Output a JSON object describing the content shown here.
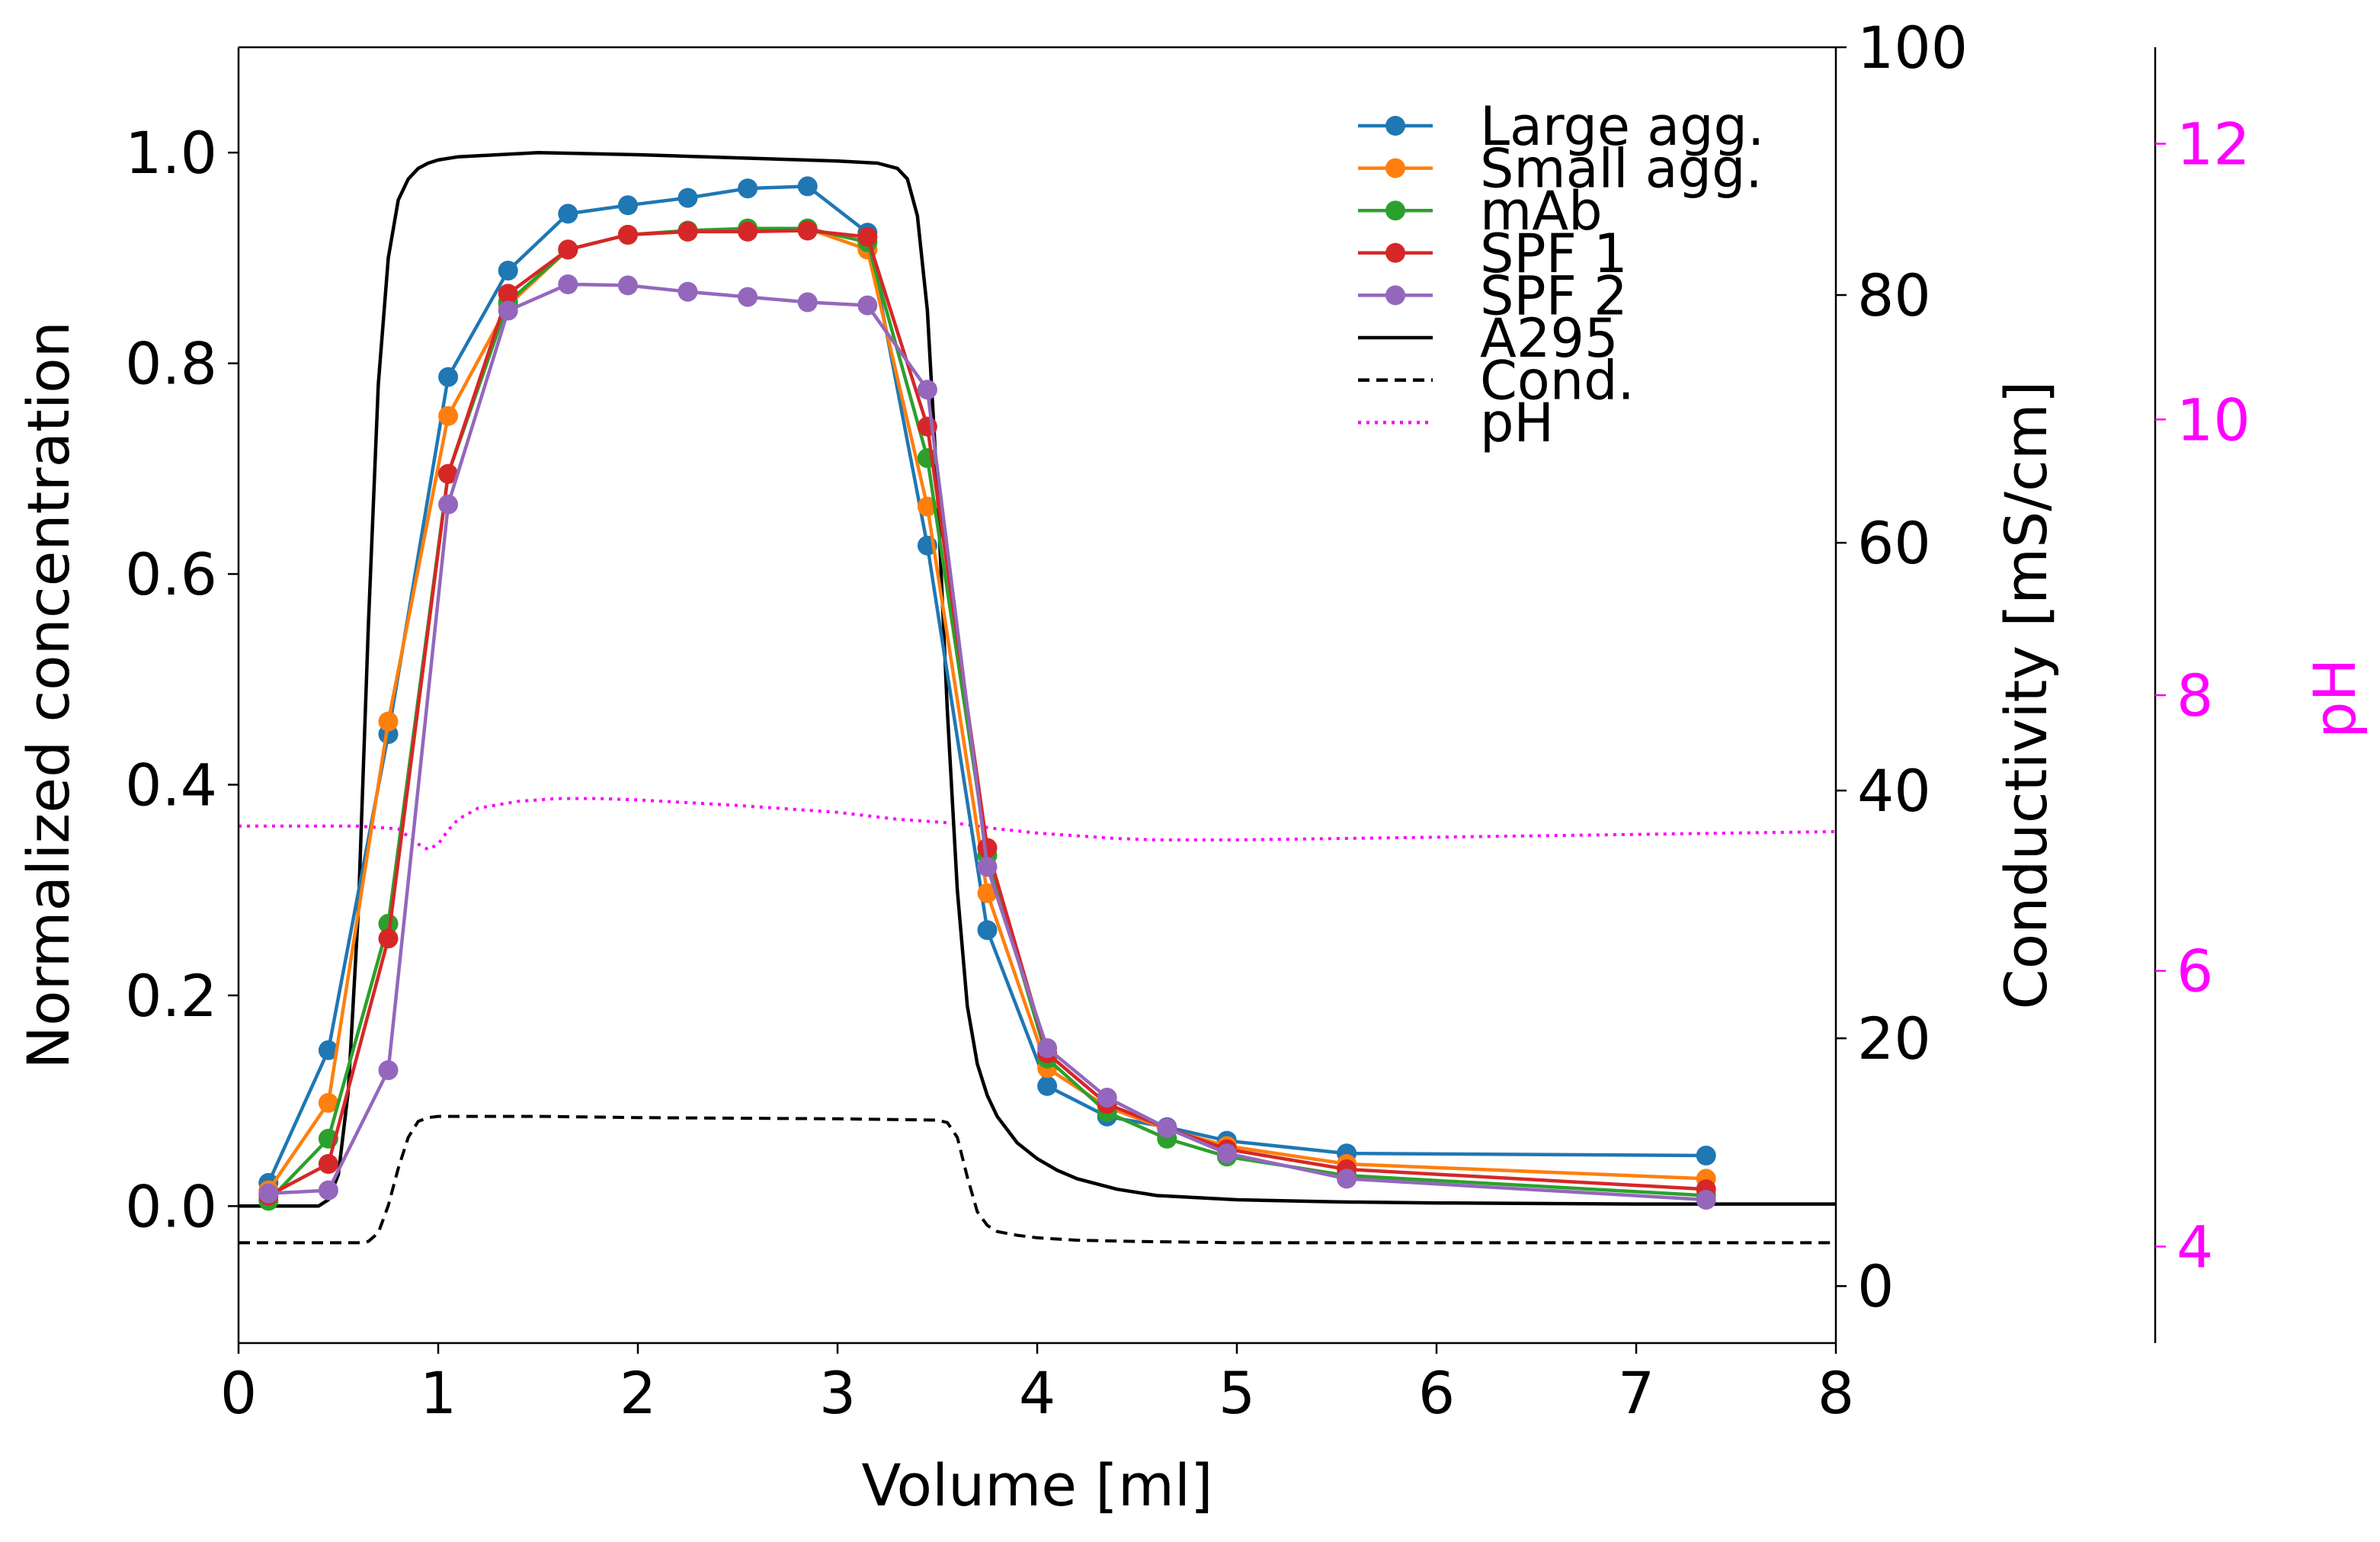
{
  "chart_data": {
    "type": "line",
    "title": "",
    "xlabel": "Volume [ml]",
    "ylabel": "Normalized concentration",
    "y2label": "Conductivity [mS/cm]",
    "y3label": "pH",
    "xlim": [
      0,
      8
    ],
    "ylim": [
      -0.13,
      1.1
    ],
    "y2lim": [
      -4.6,
      100
    ],
    "y3lim": [
      3.3,
      12.7
    ],
    "x_ticks": [
      "0",
      "1",
      "2",
      "3",
      "4",
      "5",
      "6",
      "7",
      "8"
    ],
    "y_ticks": [
      "0.0",
      "0.2",
      "0.4",
      "0.6",
      "0.8",
      "1.0"
    ],
    "y2_ticks": [
      "0",
      "20",
      "40",
      "60",
      "80",
      "100"
    ],
    "y3_ticks": [
      "4",
      "6",
      "8",
      "10",
      "12"
    ],
    "grid": false,
    "legend_position": "top-right",
    "colors": {
      "Large agg.": "#1f77b4",
      "Small agg.": "#ff7f0e",
      "mAb": "#2ca02c",
      "SPF 1": "#d62728",
      "SPF 2": "#9467bd",
      "A295": "#000000",
      "Cond.": "#000000",
      "pH": "#ff00ff",
      "pH_axis": "#ff00ff"
    },
    "x_fractions": [
      0.15,
      0.45,
      0.75,
      1.05,
      1.35,
      1.65,
      1.95,
      2.25,
      2.55,
      2.85,
      3.15,
      3.45,
      3.75,
      4.05,
      4.35,
      4.65,
      4.95,
      5.55,
      7.35
    ],
    "series": [
      {
        "name": "Large agg.",
        "values": [
          0.022,
          0.148,
          0.448,
          0.787,
          0.888,
          0.942,
          0.95,
          0.957,
          0.966,
          0.968,
          0.924,
          0.627,
          0.262,
          0.114,
          0.085,
          0.075,
          0.062,
          0.05,
          0.048
        ]
      },
      {
        "name": "Small agg.",
        "values": [
          0.015,
          0.098,
          0.46,
          0.75,
          0.855,
          0.908,
          0.922,
          0.925,
          0.928,
          0.928,
          0.908,
          0.664,
          0.297,
          0.131,
          0.094,
          0.073,
          0.057,
          0.04,
          0.026
        ]
      },
      {
        "name": "mAb",
        "values": [
          0.005,
          0.064,
          0.268,
          0.695,
          0.858,
          0.908,
          0.922,
          0.926,
          0.928,
          0.928,
          0.915,
          0.71,
          0.333,
          0.14,
          0.089,
          0.064,
          0.047,
          0.029,
          0.01
        ]
      },
      {
        "name": "SPF 1",
        "values": [
          0.01,
          0.04,
          0.254,
          0.695,
          0.866,
          0.908,
          0.922,
          0.925,
          0.925,
          0.926,
          0.92,
          0.74,
          0.34,
          0.145,
          0.097,
          0.074,
          0.054,
          0.035,
          0.016
        ]
      },
      {
        "name": "SPF 2",
        "values": [
          0.012,
          0.015,
          0.129,
          0.666,
          0.85,
          0.875,
          0.874,
          0.868,
          0.863,
          0.858,
          0.855,
          0.775,
          0.322,
          0.15,
          0.103,
          0.074,
          0.05,
          0.026,
          0.006
        ]
      },
      {
        "name": "A295",
        "x": [
          0,
          0.4,
          0.45,
          0.5,
          0.55,
          0.6,
          0.65,
          0.7,
          0.75,
          0.8,
          0.85,
          0.9,
          0.95,
          1.0,
          1.1,
          1.3,
          1.5,
          2.0,
          2.5,
          3.0,
          3.2,
          3.3,
          3.35,
          3.4,
          3.45,
          3.5,
          3.55,
          3.6,
          3.65,
          3.7,
          3.75,
          3.8,
          3.9,
          4.0,
          4.1,
          4.2,
          4.4,
          4.6,
          5.0,
          5.5,
          6.0,
          7.0,
          8.0
        ],
        "values": [
          0,
          0,
          0.006,
          0.03,
          0.11,
          0.28,
          0.55,
          0.78,
          0.9,
          0.955,
          0.975,
          0.985,
          0.99,
          0.993,
          0.996,
          0.998,
          1.0,
          0.998,
          0.995,
          0.992,
          0.99,
          0.985,
          0.975,
          0.94,
          0.85,
          0.68,
          0.47,
          0.3,
          0.19,
          0.135,
          0.105,
          0.085,
          0.06,
          0.045,
          0.034,
          0.026,
          0.016,
          0.01,
          0.006,
          0.004,
          0.003,
          0.002,
          0.002
        ]
      },
      {
        "name": "Cond.",
        "x": [
          0,
          0.6,
          0.65,
          0.7,
          0.75,
          0.8,
          0.85,
          0.9,
          0.95,
          1.0,
          1.5,
          2.0,
          3.0,
          3.5,
          3.55,
          3.6,
          3.65,
          3.7,
          3.75,
          3.8,
          3.9,
          4.0,
          4.2,
          4.5,
          5.0,
          6.0,
          8.0
        ],
        "values": [
          3.5,
          3.5,
          3.6,
          4.3,
          6.5,
          9.5,
          12.0,
          13.3,
          13.6,
          13.7,
          13.7,
          13.6,
          13.5,
          13.4,
          13.2,
          12.0,
          8.8,
          6.0,
          4.9,
          4.4,
          4.1,
          3.9,
          3.7,
          3.6,
          3.5,
          3.5,
          3.5
        ]
      },
      {
        "name": "pH",
        "x": [
          0,
          0.6,
          0.8,
          0.9,
          0.95,
          1.0,
          1.05,
          1.1,
          1.2,
          1.4,
          1.6,
          1.8,
          2.0,
          2.5,
          3.0,
          3.3,
          3.6,
          3.8,
          4.0,
          4.2,
          4.4,
          4.6,
          4.8,
          5.0,
          5.5,
          6.0,
          7.0,
          8.0
        ],
        "values": [
          7.05,
          7.05,
          7.03,
          6.92,
          6.88,
          6.92,
          7.02,
          7.1,
          7.18,
          7.23,
          7.25,
          7.25,
          7.24,
          7.2,
          7.15,
          7.1,
          7.07,
          7.03,
          7.0,
          6.98,
          6.96,
          6.95,
          6.95,
          6.95,
          6.96,
          6.97,
          6.99,
          7.01
        ]
      }
    ]
  }
}
